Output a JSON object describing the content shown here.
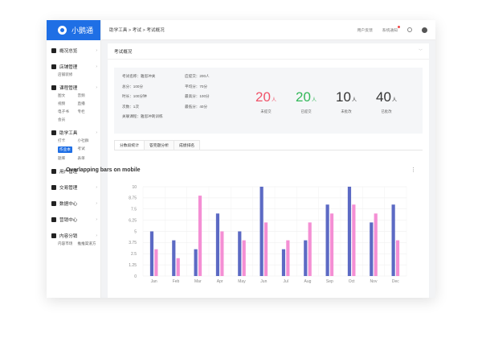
{
  "app": {
    "name": "小鹅通"
  },
  "sidebar": {
    "groups": [
      {
        "title": "概况总览",
        "subs": []
      },
      {
        "title": "店铺管理",
        "subs": [
          "店铺装修"
        ]
      },
      {
        "title": "课程管理",
        "subs": [
          "图文",
          "音频",
          "视频",
          "直播",
          "电子书",
          "专栏",
          "会员"
        ]
      },
      {
        "title": "助学工具",
        "subs": [
          "打卡",
          "小社群",
          "作业本",
          "考试",
          "题库",
          "表单"
        ],
        "active_sub": "作业本"
      },
      {
        "title": "用户管理",
        "subs": []
      },
      {
        "title": "交易管理",
        "subs": []
      },
      {
        "title": "数据中心",
        "subs": []
      },
      {
        "title": "营销中心",
        "subs": []
      },
      {
        "title": "内容分销",
        "subs": [
          "内容市场",
          "推推渠道方"
        ]
      }
    ]
  },
  "topbar": {
    "breadcrumb": "助学工具 > 考试 > 考试概况",
    "feedback": "用户反馈",
    "notice": "系统通知"
  },
  "panel": {
    "title": "考试概况"
  },
  "info": {
    "left": [
      "考试名称：雅思冲关",
      "总分：100分",
      "时长：100分钟",
      "次数：1次",
      "关联课程：雅思冲刺训练"
    ],
    "right": [
      "应提交：200人",
      "平均分：70分",
      "最高分：100分",
      "最低分：40分"
    ]
  },
  "stats": [
    {
      "num": "20",
      "unit": "人",
      "label": "未提交",
      "color": "#f0546a"
    },
    {
      "num": "20",
      "unit": "人",
      "label": "已提交",
      "color": "#34b85a"
    },
    {
      "num": "10",
      "unit": "人",
      "label": "未批改",
      "color": "#333333"
    },
    {
      "num": "40",
      "unit": "人",
      "label": "已批改",
      "color": "#333333"
    }
  ],
  "tabs": [
    "分数段统计",
    "答完题分析",
    "成绩排名"
  ],
  "chart_data": {
    "type": "bar",
    "title": "Overlapping bars on mobile",
    "categories": [
      "Jan",
      "Feb",
      "Mar",
      "Apr",
      "May",
      "Jun",
      "Jul",
      "Aug",
      "Sep",
      "Oct",
      "Nov",
      "Dec"
    ],
    "series": [
      {
        "values": [
          5,
          4,
          3,
          7,
          5,
          10,
          3,
          4,
          8,
          10,
          6,
          8
        ],
        "color": "#5c6ac4"
      },
      {
        "values": [
          3,
          2,
          9,
          5,
          4,
          6,
          4,
          6,
          7,
          8,
          7,
          4
        ],
        "color": "#f48fd4"
      }
    ],
    "yticks": [
      "0",
      "1.25",
      "2.5",
      "3.75",
      "5",
      "6.25",
      "7.5",
      "8.75",
      "10"
    ],
    "ylim": [
      0,
      10
    ],
    "grid": true
  }
}
